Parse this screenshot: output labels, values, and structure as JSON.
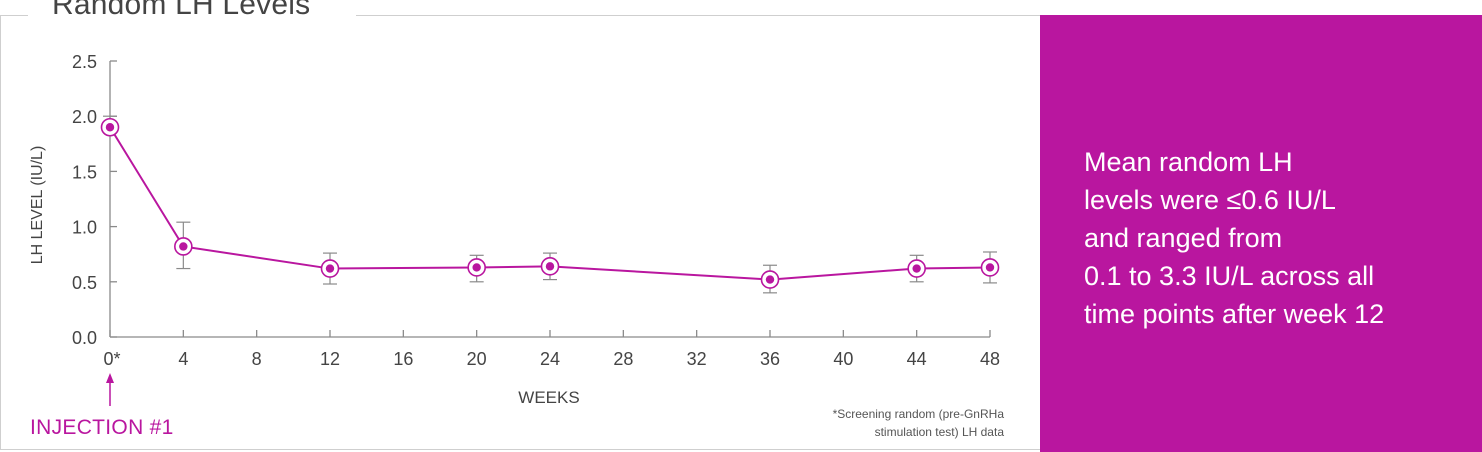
{
  "title": "Random LH Levels",
  "callout": {
    "line1": "Mean random LH",
    "line2": "levels were ≤0.6 IU/L",
    "line3": "and ranged from",
    "line4": "0.1 to 3.3 IU/L across all",
    "line5": "time points after week 12",
    "background": "#b9169f"
  },
  "annotation": {
    "injection_label": "INJECTION #1"
  },
  "footnote": {
    "line1": "*Screening random (pre-GnRHa",
    "line2": "stimulation test) LH data"
  },
  "chart_data": {
    "type": "line",
    "xlabel": "WEEKS",
    "ylabel": "LH LEVEL (IU/L)",
    "xlim": [
      0,
      48
    ],
    "ylim": [
      0,
      2.5
    ],
    "x_ticks": [
      0,
      4,
      8,
      12,
      16,
      20,
      24,
      28,
      32,
      36,
      40,
      44,
      48
    ],
    "x_tick_labels": [
      "0*",
      "4",
      "8",
      "12",
      "16",
      "20",
      "24",
      "28",
      "32",
      "36",
      "40",
      "44",
      "48"
    ],
    "y_ticks": [
      0.0,
      0.5,
      1.0,
      1.5,
      2.0,
      2.5
    ],
    "y_tick_labels": [
      "0.0",
      "0.5",
      "1.0",
      "1.5",
      "2.0",
      "2.5"
    ],
    "grid": false,
    "color": "#b9169f",
    "series": [
      {
        "x": [
          0,
          4,
          12,
          20,
          24,
          36,
          44,
          48
        ],
        "y": [
          1.9,
          0.82,
          0.62,
          0.63,
          0.64,
          0.52,
          0.62,
          0.63
        ],
        "err_low": [
          1.9,
          0.62,
          0.48,
          0.5,
          0.52,
          0.4,
          0.5,
          0.49
        ],
        "err_high": [
          2.0,
          1.04,
          0.76,
          0.74,
          0.76,
          0.65,
          0.74,
          0.77
        ]
      }
    ]
  }
}
